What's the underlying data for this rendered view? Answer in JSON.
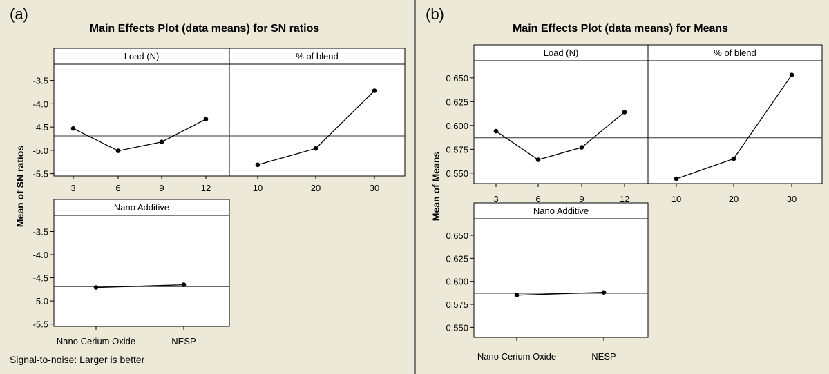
{
  "chart_data": [
    {
      "type": "line",
      "label": "(a)",
      "title": "Main Effects Plot (data means) for SN ratios",
      "ylabel": "Mean of SN ratios",
      "note": "Signal-to-noise: Larger is better",
      "ylim": [
        -5.55,
        -3.15
      ],
      "yticks": [
        "-3.5",
        "-4.0",
        "-4.5",
        "-5.0",
        "-5.5"
      ],
      "ytick_values": [
        -3.5,
        -4.0,
        -4.5,
        -5.0,
        -5.5
      ],
      "reference_line": -4.69,
      "panels": [
        {
          "title": "Load (N)",
          "categories": [
            "3",
            "6",
            "9",
            "12"
          ],
          "values": [
            -4.53,
            -5.01,
            -4.82,
            -4.33
          ]
        },
        {
          "title": "% of blend",
          "categories": [
            "10",
            "20",
            "30"
          ],
          "values": [
            -5.31,
            -4.96,
            -3.72
          ]
        },
        {
          "title": "Nano Additive",
          "categories": [
            "Nano Cerium Oxide",
            "NESP"
          ],
          "values": [
            -4.71,
            -4.65
          ]
        }
      ]
    },
    {
      "type": "line",
      "label": "(b)",
      "title": "Main Effects Plot (data means) for Means",
      "ylabel": "Mean of Means",
      "note": "",
      "ylim": [
        0.539,
        0.668
      ],
      "yticks": [
        "0.650",
        "0.625",
        "0.600",
        "0.575",
        "0.550"
      ],
      "ytick_values": [
        0.65,
        0.625,
        0.6,
        0.575,
        0.55
      ],
      "reference_line": 0.587,
      "panels": [
        {
          "title": "Load (N)",
          "categories": [
            "3",
            "6",
            "9",
            "12"
          ],
          "values": [
            0.594,
            0.564,
            0.577,
            0.614
          ]
        },
        {
          "title": "% of blend",
          "categories": [
            "10",
            "20",
            "30"
          ],
          "values": [
            0.544,
            0.565,
            0.653
          ]
        },
        {
          "title": "Nano Additive",
          "categories": [
            "Nano Cerium Oxide",
            "NESP"
          ],
          "values": [
            0.585,
            0.588
          ]
        }
      ]
    }
  ],
  "colors": {
    "background": "#ece9d8",
    "plot_area": "#ffffff",
    "line": "#000000"
  }
}
